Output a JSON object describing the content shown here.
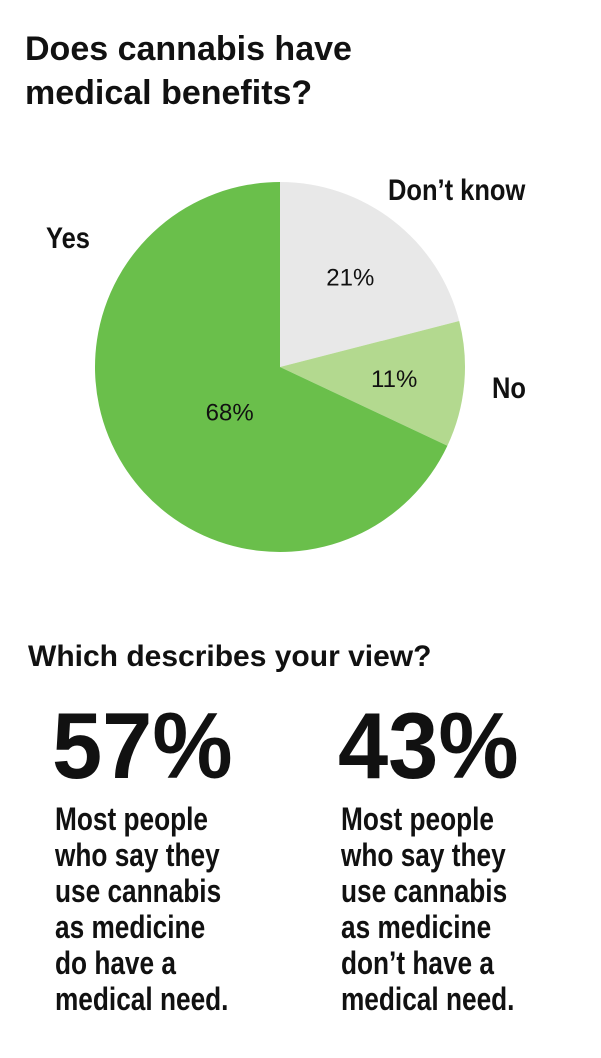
{
  "chart_data": [
    {
      "type": "pie",
      "title": [
        "Does cannabis have",
        "medical benefits?"
      ],
      "categories": [
        "Don’t know",
        "No",
        "Yes"
      ],
      "values": [
        21,
        11,
        68
      ],
      "value_labels": [
        "21%",
        "11%",
        "68%"
      ],
      "colors": [
        "#e8e8e8",
        "#b3d98f",
        "#6abf4b"
      ]
    },
    {
      "type": "stat",
      "title": "Which describes your view?",
      "values": [
        57,
        43
      ],
      "value_labels": [
        "57%",
        "43%"
      ],
      "colors": [
        "#6abf4b",
        "#b3d98f"
      ],
      "texts": [
        [
          "Most people",
          "who say they",
          "use cannabis",
          "as medicine"
        ],
        [
          "Most people",
          "who say they",
          "use cannabis",
          "as medicine"
        ]
      ],
      "highlights": [
        [
          "do have a",
          "medical need."
        ],
        [
          "don’t have a",
          "medical need."
        ]
      ],
      "highlight_color": "#6abf4b"
    }
  ]
}
